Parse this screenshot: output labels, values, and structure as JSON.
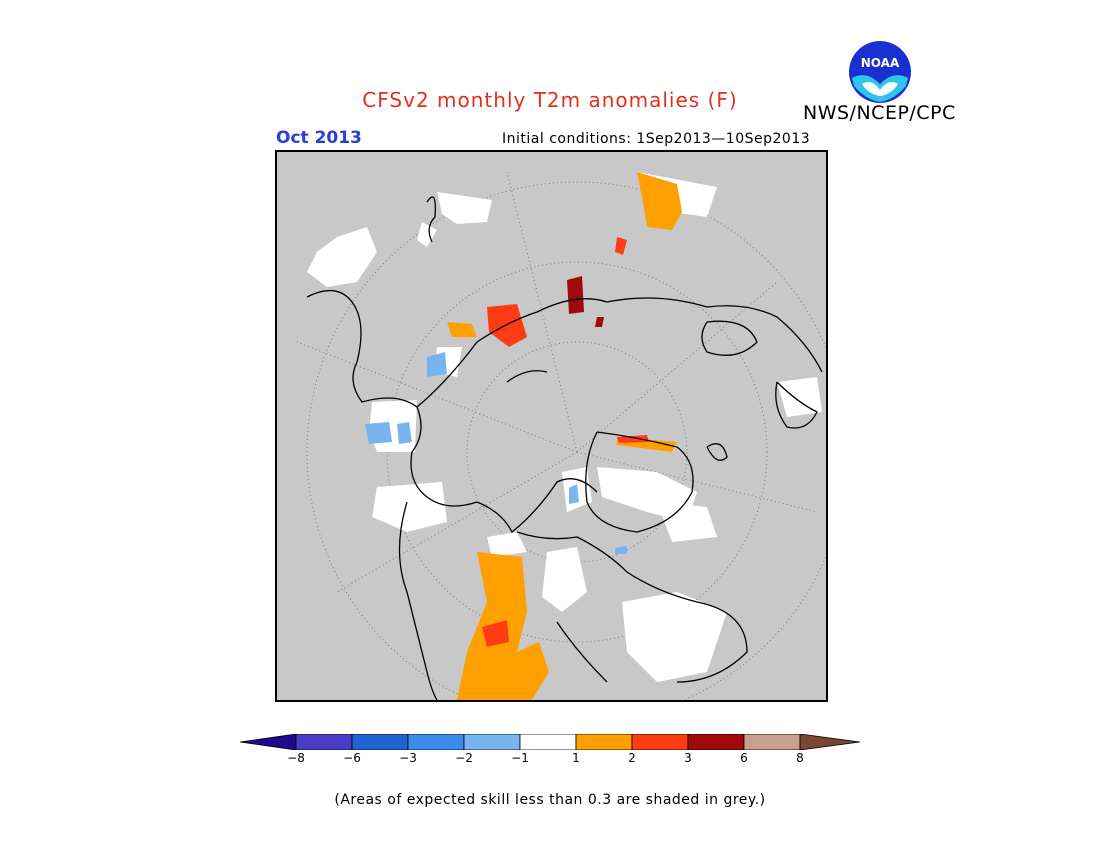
{
  "header": {
    "title": "CFSv2 monthly T2m anomalies (F)",
    "month": "Oct 2013",
    "initial_conditions": "Initial conditions: 1Sep2013—10Sep2013",
    "agency": "NWS/NCEP/CPC",
    "logo_text": "NOAA"
  },
  "legend": {
    "ticks": [
      "−8",
      "−6",
      "−3",
      "−2",
      "−1",
      "1",
      "2",
      "3",
      "6",
      "8"
    ],
    "colors": [
      "#1e0a8c",
      "#4b3cc8",
      "#1e64d2",
      "#3c8ceb",
      "#78b4f0",
      "#ffffff",
      "#ffa000",
      "#ff3c14",
      "#a00a0a",
      "#c8a08c",
      "#784632"
    ]
  },
  "footnote": "(Areas of expected skill less than 0.3 are shaded in grey.)",
  "colors": {
    "title": "#e0301e",
    "month": "#2b3fd6",
    "skill_grey": "#c8c8c8"
  }
}
